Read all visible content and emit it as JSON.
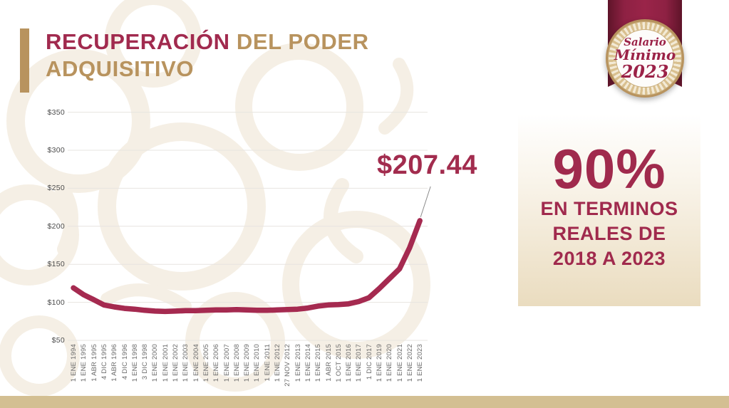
{
  "title": {
    "accent": "RECUPERACIÓN",
    "rest_line1": " DEL PODER",
    "line2": "ADQUISITIVO"
  },
  "badge": {
    "line1": "Salario",
    "line2": "Mínimo",
    "line3": "2023"
  },
  "annotation": {
    "value_label": "$207.44"
  },
  "callout": {
    "headline": "90%",
    "line1": "EN TERMINOS",
    "line2": "REALES DE",
    "line3": "2018 A 2023"
  },
  "chart_data": {
    "type": "line",
    "title": "Recuperación del poder adquisitivo del salario mínimo",
    "xlabel": "",
    "ylabel": "",
    "ylim": [
      50,
      350
    ],
    "grid": true,
    "legend": false,
    "y_tick_labels": [
      "$350",
      "$300",
      "$250",
      "$200",
      "$150",
      "$100",
      "$50"
    ],
    "y_tick_values": [
      350,
      300,
      250,
      200,
      150,
      100,
      50
    ],
    "categories": [
      "1 ENE 1994",
      "1 ENE 1995",
      "1 ABR 1995",
      "4 DIC 1995",
      "1 ABR 1996",
      "4 DIC 1996",
      "1 ENE 1998",
      "3 DIC 1998",
      "1 ENE 2000",
      "1 ENE 2001",
      "1 ENE 2002",
      "1 ENE 2003",
      "1 ENE 2004",
      "1 ENE 2005",
      "1 ENE 2006",
      "1 ENE 2007",
      "1 ENE 2008",
      "1 ENE 2009",
      "1 ENE 2010",
      "1 ENE 2011",
      "1 ENE 2012",
      "27 NOV 2012",
      "1 ENE 2013",
      "1 ENE 2014",
      "1 ENE 2015",
      "1 ABR 2015",
      "1 OCT 2015",
      "1 ENE 2016",
      "1 ENE 2017",
      "1 DIC 2017",
      "1 ENE 2019",
      "1 ENE 2020",
      "1 ENE 2021",
      "1 ENE 2022",
      "1 ENE 2023"
    ],
    "values": [
      119,
      110,
      103.5,
      96.5,
      94,
      92,
      91,
      89.5,
      88.5,
      88,
      88.5,
      89,
      89,
      89.5,
      90,
      90,
      90.5,
      90,
      89.5,
      89.5,
      90,
      90.5,
      91,
      92.5,
      95,
      96.5,
      97,
      98,
      101,
      106,
      118,
      131,
      144,
      172,
      207.44
    ],
    "annotation": {
      "text": "$207.44",
      "category": "1 ENE 2023",
      "value": 207.44
    }
  },
  "colors": {
    "maroon_text": "#A12A4E",
    "gold": "#B8935E",
    "line": "#A52A50",
    "grid": "#E7E4E0",
    "axis_text": "#6B6B6B",
    "leader": "#8A8A8A",
    "bottom_bar": "#D3BF92",
    "callout_bg_bottom": "#EADCBF",
    "ribbon": "#8E2143",
    "pattern": "#F4EDE1"
  }
}
